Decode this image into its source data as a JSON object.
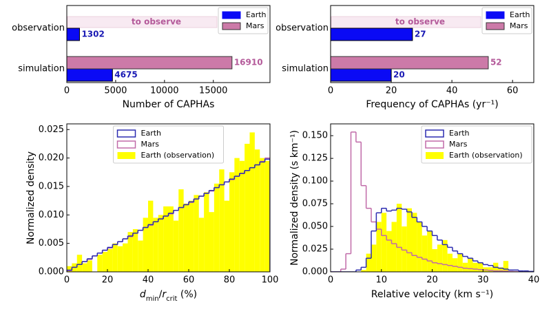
{
  "chart_data": [
    {
      "type": "bar",
      "orientation": "horizontal",
      "categories": [
        "observation",
        "simulation"
      ],
      "series": [
        {
          "name": "Earth",
          "color": "#0a0af5",
          "label_color": "#1a1ab4",
          "values": [
            1302,
            4675
          ]
        },
        {
          "name": "Mars",
          "color": "#cc7aa8",
          "label_color": "#b45a9a",
          "values": [
            null,
            16910
          ]
        }
      ],
      "annotation": "to observe",
      "xlabel": "Number of CAPHAs",
      "xlim": [
        0,
        20800
      ],
      "xticks": [
        0,
        5000,
        10000,
        15000
      ],
      "legend": "upper right"
    },
    {
      "type": "bar",
      "orientation": "horizontal",
      "categories": [
        "observation",
        "simulation"
      ],
      "series": [
        {
          "name": "Earth",
          "color": "#0a0af5",
          "label_color": "#1a1ab4",
          "values": [
            27,
            20
          ]
        },
        {
          "name": "Mars",
          "color": "#cc7aa8",
          "label_color": "#b45a9a",
          "values": [
            null,
            52
          ]
        }
      ],
      "annotation": "to observe",
      "xlabel": "Frequency of CAPHAs (yr⁻¹)",
      "xlim": [
        0,
        67
      ],
      "xticks": [
        0,
        20,
        40,
        60
      ],
      "legend": "upper right"
    },
    {
      "type": "histogram",
      "bins": [
        0,
        2.5,
        5,
        7.5,
        10,
        12.5,
        15,
        17.5,
        20,
        22.5,
        25,
        27.5,
        30,
        32.5,
        35,
        37.5,
        40,
        42.5,
        45,
        47.5,
        50,
        52.5,
        55,
        57.5,
        60,
        62.5,
        65,
        67.5,
        70,
        72.5,
        75,
        77.5,
        80,
        82.5,
        85,
        87.5,
        90,
        92.5,
        95,
        97.5,
        100
      ],
      "series": [
        {
          "name": "Earth",
          "color": "#2b2bb0",
          "style": "step",
          "values": [
            0.0003,
            0.0008,
            0.0013,
            0.0018,
            0.0023,
            0.0028,
            0.0033,
            0.0038,
            0.0043,
            0.0048,
            0.0053,
            0.0058,
            0.0063,
            0.0068,
            0.0073,
            0.0078,
            0.0083,
            0.0088,
            0.0093,
            0.0098,
            0.0103,
            0.0108,
            0.0113,
            0.0118,
            0.0123,
            0.0128,
            0.0133,
            0.0138,
            0.0143,
            0.0148,
            0.0153,
            0.0158,
            0.0163,
            0.0168,
            0.0173,
            0.0178,
            0.0183,
            0.0188,
            0.0193,
            0.0198
          ]
        },
        {
          "name": "Mars",
          "color": "#c06aa8",
          "style": "step",
          "values": [
            0.0002,
            0.0008,
            0.0013,
            0.0018,
            0.0022,
            0.0028,
            0.0033,
            0.0038,
            0.0042,
            0.0048,
            0.0053,
            0.0058,
            0.0062,
            0.0068,
            0.0073,
            0.0078,
            0.0082,
            0.0088,
            0.0093,
            0.0098,
            0.0102,
            0.0108,
            0.0113,
            0.0118,
            0.0122,
            0.0128,
            0.0133,
            0.0138,
            0.0142,
            0.0148,
            0.0153,
            0.0158,
            0.0162,
            0.0168,
            0.0173,
            0.0178,
            0.0183,
            0.0188,
            0.0194,
            0.02
          ]
        },
        {
          "name": "Earth (observation)",
          "color": "#ffff00",
          "style": "bar",
          "values": [
            0.001,
            0.0015,
            0.003,
            0.0015,
            0.002,
            0,
            0.003,
            0.0035,
            0.004,
            0.005,
            0.0045,
            0.005,
            0.007,
            0.0075,
            0.0055,
            0.0095,
            0.0125,
            0.0095,
            0.01,
            0.0115,
            0.0115,
            0.009,
            0.0145,
            0.012,
            0.0125,
            0.0135,
            0.0095,
            0.014,
            0.0105,
            0.0155,
            0.018,
            0.0125,
            0.0175,
            0.02,
            0.0195,
            0.0225,
            0.0245,
            0.0215,
            0.02,
            0.0195
          ]
        }
      ],
      "xlabel": [
        {
          "text": "d",
          "italic": true
        },
        {
          "text": "min",
          "sub": true
        },
        {
          "text": "/"
        },
        {
          "text": "r",
          "italic": true
        },
        {
          "text": "crit",
          "sub": true
        },
        {
          "text": " (%)"
        }
      ],
      "ylabel": "Normalized density",
      "xlim": [
        0,
        100
      ],
      "xticks": [
        0,
        20,
        40,
        60,
        80,
        100
      ],
      "ylim": [
        0,
        0.026
      ],
      "yticks": [
        {
          "value": 0,
          "label": "0.000"
        },
        0.005,
        {
          "value": 0.01,
          "label": "0.010"
        },
        0.015,
        {
          "value": 0.02,
          "label": "0.020"
        },
        0.025
      ],
      "legend": "upper center"
    },
    {
      "type": "histogram",
      "bins": [
        0,
        1,
        2,
        3,
        4,
        5,
        6,
        7,
        8,
        9,
        10,
        11,
        12,
        13,
        14,
        15,
        16,
        17,
        18,
        19,
        20,
        21,
        22,
        23,
        24,
        25,
        26,
        27,
        28,
        29,
        30,
        31,
        32,
        33,
        34,
        35,
        36,
        37,
        38,
        39,
        40
      ],
      "series": [
        {
          "name": "Earth",
          "color": "#2b2bb0",
          "style": "step",
          "values": [
            0,
            0,
            0,
            0,
            0,
            0.002,
            0.005,
            0.015,
            0.045,
            0.065,
            0.07,
            0.067,
            0.068,
            0.07,
            0.069,
            0.066,
            0.06,
            0.055,
            0.05,
            0.045,
            0.04,
            0.035,
            0.03,
            0.027,
            0.023,
            0.02,
            0.017,
            0.015,
            0.012,
            0.01,
            0.008,
            0.007,
            0.005,
            0.004,
            0.003,
            0.002,
            0.002,
            0.001,
            0.001,
            0.0005
          ]
        },
        {
          "name": "Mars",
          "color": "#c06aa8",
          "style": "step",
          "values": [
            0,
            0,
            0.003,
            0.02,
            0.154,
            0.143,
            0.095,
            0.07,
            0.055,
            0.047,
            0.04,
            0.035,
            0.031,
            0.027,
            0.024,
            0.021,
            0.018,
            0.016,
            0.014,
            0.012,
            0.01,
            0.009,
            0.008,
            0.007,
            0.006,
            0.005,
            0.004,
            0.0035,
            0.003,
            0.0025,
            0.002,
            0.0015,
            0.001,
            0.001,
            0.0008,
            0.0005,
            0.0003,
            0.0002,
            0.0001,
            0
          ]
        },
        {
          "name": "Earth (observation)",
          "color": "#ffff00",
          "style": "bar",
          "values": [
            0,
            0,
            0,
            0,
            0,
            0,
            0.002,
            0.02,
            0.03,
            0.055,
            0.065,
            0.045,
            0.055,
            0.075,
            0.05,
            0.07,
            0.065,
            0.055,
            0.04,
            0.045,
            0.025,
            0.03,
            0.035,
            0.02,
            0.015,
            0.02,
            0.01,
            0.015,
            0.01,
            0.01,
            0.005,
            0.005,
            0.01,
            0.005,
            0.012,
            0,
            0,
            0,
            0,
            0
          ]
        }
      ],
      "xlabel": "Relative velocity (km s⁻¹)",
      "ylabel": "Normalized density (s km⁻¹)",
      "xlim": [
        0,
        40
      ],
      "xticks": [
        0,
        10,
        20,
        30,
        40
      ],
      "ylim": [
        0,
        0.163
      ],
      "yticks": [
        {
          "value": 0,
          "label": "0.000"
        },
        0.025,
        {
          "value": 0.05,
          "label": "0.050"
        },
        0.075,
        {
          "value": 0.1,
          "label": "0.100"
        },
        0.125,
        {
          "value": 0.15,
          "label": "0.150"
        }
      ],
      "legend": "upper right"
    }
  ]
}
